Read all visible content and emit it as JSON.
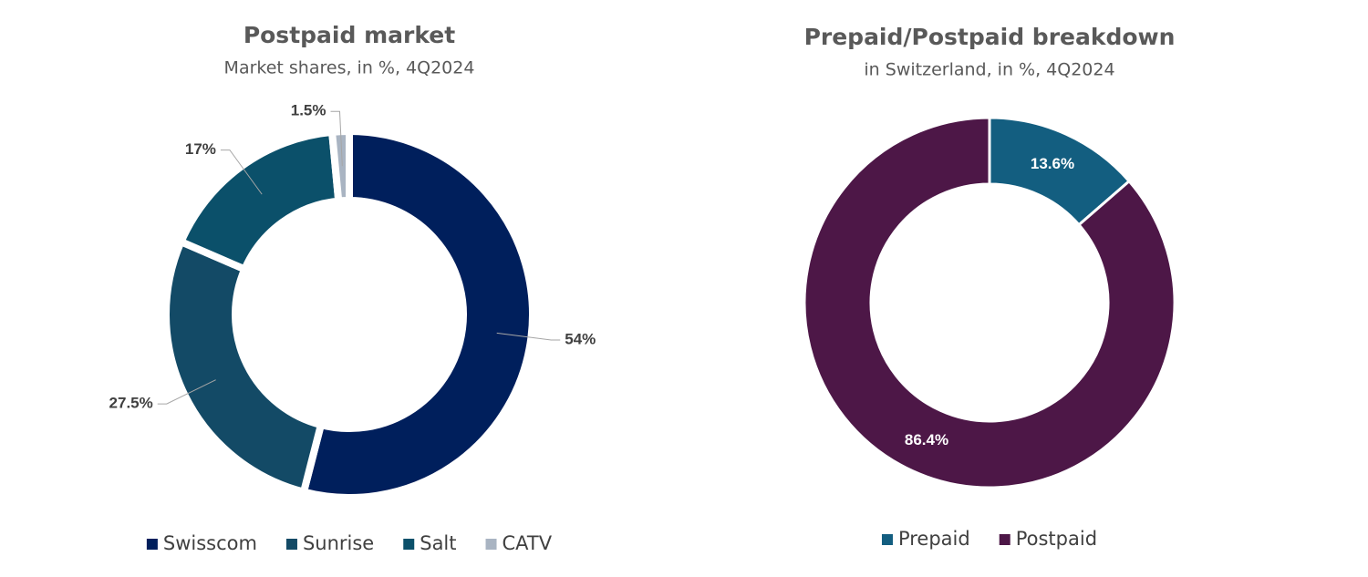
{
  "chart_data": [
    {
      "type": "donut",
      "title": "Postpaid market",
      "subtitle": "Market shares, in %, 4Q2024",
      "categories": [
        "Swisscom",
        "Sunrise",
        "Salt",
        "CATV"
      ],
      "values": [
        54,
        27.5,
        17,
        1.5
      ],
      "value_labels": [
        "54%",
        "27.5%",
        "17%",
        "1.5%"
      ],
      "colors": [
        "#001f5c",
        "#134a66",
        "#0b506a",
        "#a9b4c2"
      ],
      "label_position": "outside",
      "legend": "bottom"
    },
    {
      "type": "donut",
      "title": "Prepaid/Postpaid breakdown",
      "subtitle": "in Switzerland, in %, 4Q2024",
      "categories": [
        "Prepaid",
        "Postpaid"
      ],
      "values": [
        13.6,
        86.4
      ],
      "value_labels": [
        "13.6%",
        "86.4%"
      ],
      "colors": [
        "#135e80",
        "#4d1747"
      ],
      "label_position": "inside",
      "legend": "bottom"
    }
  ]
}
